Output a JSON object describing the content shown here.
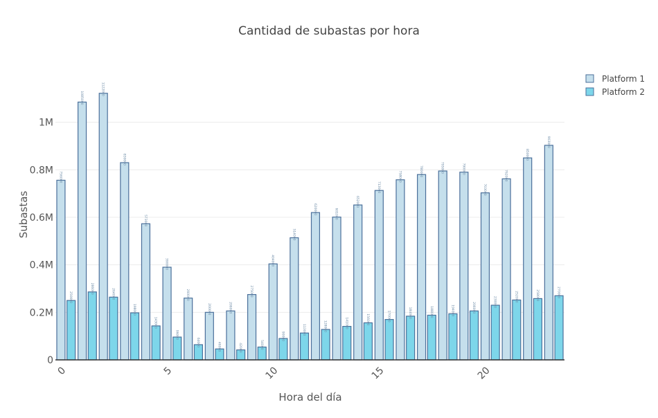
{
  "chart_data": {
    "type": "bar",
    "title": "Cantidad de subastas por hora",
    "xlabel": "Hora del día",
    "ylabel": "Subastas",
    "x": [
      0,
      1,
      2,
      3,
      4,
      5,
      6,
      7,
      8,
      9,
      10,
      11,
      12,
      13,
      14,
      15,
      16,
      17,
      18,
      19,
      20,
      21,
      22,
      23
    ],
    "x_ticks": [
      0,
      5,
      10,
      15,
      20
    ],
    "y_ticks": [
      0,
      200000,
      400000,
      600000,
      800000,
      1000000
    ],
    "y_tick_labels": [
      "0",
      "0.2M",
      "0.4M",
      "0.6M",
      "0.8M",
      "1M"
    ],
    "ylim": [
      0,
      1200000
    ],
    "grid": true,
    "legend_position": "top-right",
    "series": [
      {
        "name": "Platform 1",
        "color": "#c5dfec",
        "values": [
          756000,
          1085000,
          1122000,
          830000,
          573000,
          390000,
          260000,
          200000,
          206000,
          275000,
          404000,
          514000,
          620000,
          601000,
          652000,
          713000,
          758000,
          780000,
          795000,
          790000,
          703000,
          762000,
          850000,
          903000
        ]
      },
      {
        "name": "Platform 2",
        "color": "#7dd6ea",
        "values": [
          250000,
          286000,
          264000,
          198000,
          143000,
          96000,
          64000,
          46000,
          42000,
          54000,
          90000,
          113000,
          128000,
          141000,
          156000,
          170000,
          184000,
          188000,
          194000,
          206000,
          230000,
          252000,
          258000,
          270000
        ]
      }
    ],
    "bar_edge_color": "#4a6f9a",
    "axis_color": "#333333"
  }
}
